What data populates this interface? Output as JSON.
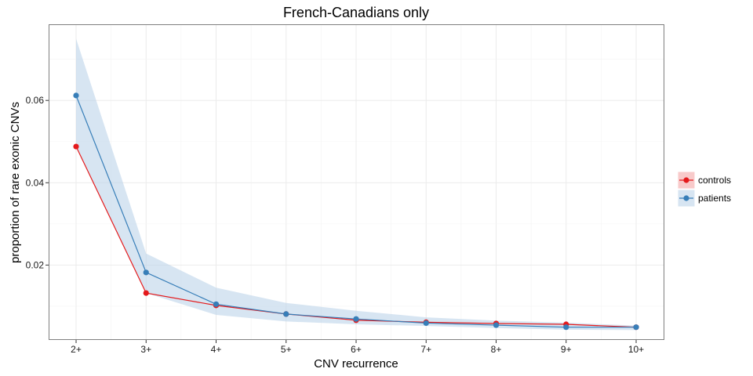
{
  "chart_data": {
    "type": "line",
    "title": "French-Canadians only",
    "xlabel": "CNV recurrence",
    "ylabel": "proportion of rare exonic CNVs",
    "categories": [
      "2+",
      "3+",
      "4+",
      "5+",
      "6+",
      "7+",
      "8+",
      "9+",
      "10+"
    ],
    "ylim": [
      0.0018,
      0.0785
    ],
    "yticks": [
      0.02,
      0.04,
      0.06
    ],
    "ytick_labels": [
      "0.02",
      "0.04",
      "0.06"
    ],
    "grid": true,
    "legend_position": "right",
    "series": [
      {
        "name": "controls",
        "color": "#e41a1c",
        "band_color": "#f4a6a7",
        "values": [
          0.0488,
          0.0132,
          0.0102,
          0.0081,
          0.0066,
          0.0061,
          0.0058,
          0.0056,
          0.0049
        ],
        "lower": [
          0.0488,
          0.0132,
          0.0102,
          0.0081,
          0.0066,
          0.0061,
          0.0058,
          0.0056,
          0.0049
        ],
        "upper": [
          0.0488,
          0.0132,
          0.0102,
          0.0081,
          0.0066,
          0.0061,
          0.0058,
          0.0056,
          0.0049
        ]
      },
      {
        "name": "patients",
        "color": "#377eb8",
        "band_color": "#bcd3ea",
        "values": [
          0.0612,
          0.0182,
          0.0105,
          0.0081,
          0.0069,
          0.0059,
          0.0054,
          0.0049,
          0.0049
        ],
        "lower": [
          0.0488,
          0.0132,
          0.0079,
          0.0063,
          0.0056,
          0.0052,
          0.0047,
          0.0043,
          0.0042
        ],
        "upper": [
          0.075,
          0.0228,
          0.0145,
          0.0108,
          0.0089,
          0.0073,
          0.0065,
          0.006,
          0.0053
        ]
      }
    ]
  }
}
